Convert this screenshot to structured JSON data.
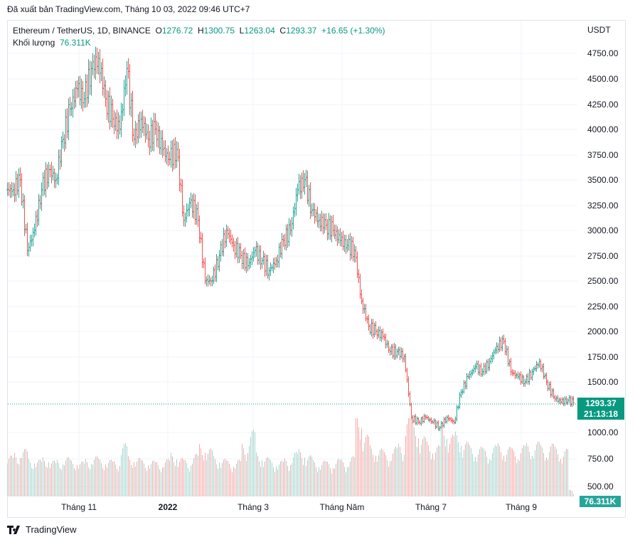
{
  "published": "Đã xuất bản TradingView.com, Tháng 10 03, 2022 09:46 UTC+7",
  "legend": {
    "symbol": "Ethereum / TetherUS, 1D, BINANCE",
    "o_label": "O",
    "open": "1276.72",
    "h_label": "H",
    "high": "1300.75",
    "l_label": "L",
    "low": "1263.04",
    "c_label": "C",
    "close": "1293.37",
    "change": "+16.65 (+1.30%)",
    "volume_label": "Khối lượng",
    "volume": "76.311K"
  },
  "axis_unit": "USDT",
  "price_tag": {
    "price": "1293.37",
    "countdown": "21:13:18"
  },
  "volume_tag": "76.311K",
  "brand": "TradingView",
  "colors": {
    "up": "#26a69a",
    "down": "#ef5350",
    "tag": "#089981",
    "grid": "#f0f3fa"
  },
  "chart_data": {
    "type": "ohlc-bar",
    "y_ticks": [
      "4750.00",
      "4500.00",
      "4250.00",
      "4000.00",
      "3750.00",
      "3500.00",
      "3250.00",
      "3000.00",
      "2750.00",
      "2500.00",
      "2250.00",
      "2000.00",
      "1750.00",
      "1500.00",
      "1000.00",
      "750.00",
      "500.00"
    ],
    "y_tick_values": [
      4750,
      4500,
      4250,
      4000,
      3750,
      3500,
      3250,
      3000,
      2750,
      2500,
      2250,
      2000,
      1750,
      1500,
      1000,
      750,
      500
    ],
    "x_ticks": [
      "Tháng 11",
      "2022",
      "Tháng 3",
      "Tháng Năm",
      "Tháng 7",
      "Tháng 9"
    ],
    "ylim": [
      400,
      4900
    ],
    "grid": true,
    "closes": [
      3400,
      3500,
      2800,
      3000,
      3400,
      3600,
      3500,
      3900,
      4200,
      4400,
      4300,
      4600,
      4700,
      4300,
      4100,
      4000,
      4600,
      3900,
      4100,
      3900,
      4000,
      3800,
      3700,
      3800,
      3100,
      3300,
      3100,
      2500,
      2500,
      2750,
      3000,
      2850,
      2750,
      2650,
      2800,
      2700,
      2600,
      2700,
      2900,
      3000,
      3400,
      3500,
      3200,
      3100,
      3050,
      3000,
      2900,
      2850,
      2800,
      2300,
      2050,
      2000,
      1950,
      1800,
      1800,
      1750,
      1150,
      1100,
      1150,
      1100,
      1050,
      1150,
      1100,
      1400,
      1550,
      1650,
      1600,
      1700,
      1850,
      1900,
      1600,
      1550,
      1500,
      1600,
      1700,
      1500,
      1350,
      1300,
      1320,
      1293.37
    ],
    "volumes_k": [
      480,
      520,
      560,
      450,
      430,
      470,
      420,
      440,
      460,
      430,
      410,
      450,
      470,
      440,
      430,
      420,
      620,
      480,
      450,
      430,
      420,
      410,
      440,
      520,
      450,
      430,
      500,
      620,
      560,
      480,
      440,
      420,
      430,
      620,
      780,
      520,
      460,
      430,
      420,
      450,
      520,
      560,
      480,
      430,
      420,
      410,
      440,
      430,
      470,
      1000,
      720,
      600,
      560,
      520,
      580,
      620,
      980,
      860,
      700,
      640,
      600,
      860,
      720,
      760,
      640,
      600,
      580,
      560,
      600,
      620,
      580,
      560,
      600,
      620,
      640,
      600,
      620,
      580,
      560,
      76.311
    ]
  }
}
